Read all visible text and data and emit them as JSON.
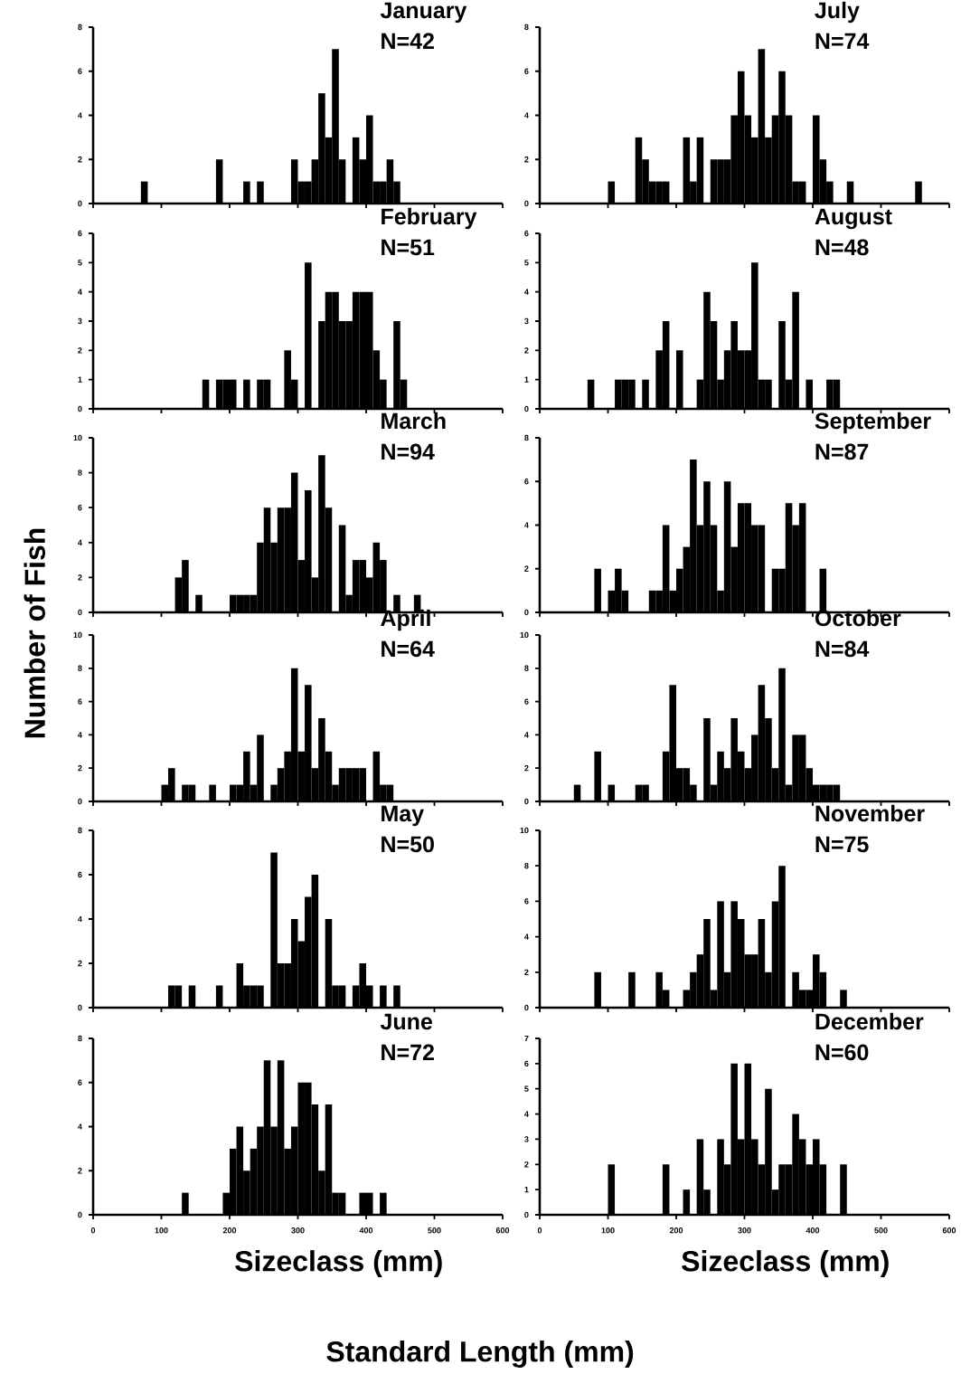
{
  "chart_data": [
    {
      "type": "histogram",
      "title": "January",
      "subtitle": "N=42",
      "color": "#000000",
      "xlim": [
        0,
        600
      ],
      "xticks": [
        0,
        100,
        200,
        300,
        400,
        500,
        600
      ],
      "ylim": [
        0,
        8
      ],
      "yticks": [
        0,
        2,
        4,
        6,
        8
      ],
      "tick_labels": "y",
      "bins": [
        70,
        80,
        90,
        100,
        110,
        120,
        130,
        140,
        150,
        160,
        170,
        180,
        190,
        200,
        210,
        220,
        230,
        240,
        250,
        260,
        270,
        280,
        290,
        300,
        310,
        320,
        330,
        340,
        350,
        360,
        370,
        380,
        390,
        400,
        410,
        420,
        430,
        440,
        450
      ],
      "values": [
        1,
        0,
        0,
        0,
        0,
        0,
        0,
        0,
        0,
        0,
        0,
        2,
        0,
        0,
        0,
        1,
        0,
        1,
        0,
        0,
        0,
        0,
        2,
        1,
        1,
        2,
        5,
        3,
        7,
        2,
        0,
        3,
        2,
        4,
        1,
        1,
        2,
        1
      ]
    },
    {
      "type": "histogram",
      "title": "July",
      "subtitle": "N=74",
      "color": "#000000",
      "xlim": [
        0,
        600
      ],
      "xticks": [
        0,
        100,
        200,
        300,
        400,
        500,
        600
      ],
      "ylim": [
        0,
        8
      ],
      "yticks": [
        0,
        2,
        4,
        6,
        8
      ],
      "tick_labels": "y",
      "bins": [
        100,
        110,
        120,
        130,
        140,
        150,
        160,
        170,
        180,
        190,
        200,
        210,
        220,
        230,
        240,
        250,
        260,
        270,
        280,
        290,
        300,
        310,
        320,
        330,
        340,
        350,
        360,
        370,
        380,
        390,
        400,
        410,
        420,
        430,
        440,
        450,
        460,
        470,
        480,
        490,
        500,
        510,
        520,
        530,
        540,
        550,
        560
      ],
      "values": [
        1,
        0,
        0,
        0,
        3,
        2,
        1,
        1,
        1,
        0,
        0,
        3,
        1,
        3,
        0,
        2,
        2,
        2,
        4,
        6,
        4,
        3,
        7,
        3,
        4,
        6,
        4,
        1,
        1,
        0,
        4,
        2,
        1,
        0,
        0,
        1,
        0,
        0,
        0,
        0,
        0,
        0,
        0,
        0,
        0,
        1
      ]
    },
    {
      "type": "histogram",
      "title": "February",
      "subtitle": "N=51",
      "color": "#000000",
      "xlim": [
        0,
        600
      ],
      "xticks": [
        0,
        100,
        200,
        300,
        400,
        500,
        600
      ],
      "ylim": [
        0,
        6
      ],
      "yticks": [
        0,
        1,
        2,
        3,
        4,
        5,
        6
      ],
      "tick_labels": "y",
      "bins": [
        160,
        170,
        180,
        190,
        200,
        210,
        220,
        230,
        240,
        250,
        260,
        270,
        280,
        290,
        300,
        310,
        320,
        330,
        340,
        350,
        360,
        370,
        380,
        390,
        400,
        410,
        420,
        430,
        440,
        450,
        460
      ],
      "values": [
        1,
        0,
        1,
        1,
        1,
        0,
        1,
        0,
        1,
        1,
        0,
        0,
        2,
        1,
        0,
        5,
        0,
        3,
        4,
        4,
        3,
        3,
        4,
        4,
        4,
        2,
        1,
        0,
        3,
        1
      ]
    },
    {
      "type": "histogram",
      "title": "August",
      "subtitle": "N=48",
      "color": "#000000",
      "xlim": [
        0,
        600
      ],
      "xticks": [
        0,
        100,
        200,
        300,
        400,
        500,
        600
      ],
      "ylim": [
        0,
        6
      ],
      "yticks": [
        0,
        1,
        2,
        3,
        4,
        5,
        6
      ],
      "tick_labels": "y",
      "bins": [
        70,
        80,
        90,
        100,
        110,
        120,
        130,
        140,
        150,
        160,
        170,
        180,
        190,
        200,
        210,
        220,
        230,
        240,
        250,
        260,
        270,
        280,
        290,
        300,
        310,
        320,
        330,
        340,
        350,
        360,
        370,
        380,
        390,
        400,
        410,
        420,
        430,
        440
      ],
      "values": [
        1,
        0,
        0,
        0,
        1,
        1,
        1,
        0,
        1,
        0,
        2,
        3,
        0,
        2,
        0,
        0,
        1,
        4,
        3,
        1,
        2,
        3,
        2,
        2,
        5,
        1,
        1,
        0,
        3,
        1,
        4,
        0,
        1,
        0,
        0,
        1,
        1
      ]
    },
    {
      "type": "histogram",
      "title": "March",
      "subtitle": "N=94",
      "ylabel": "Number of Fish",
      "color": "#000000",
      "xlim": [
        0,
        600
      ],
      "xticks": [
        0,
        100,
        200,
        300,
        400,
        500,
        600
      ],
      "ylim": [
        0,
        10
      ],
      "yticks": [
        0,
        2,
        4,
        6,
        8,
        10
      ],
      "tick_labels": "y",
      "bins": [
        120,
        130,
        140,
        150,
        160,
        170,
        180,
        190,
        200,
        210,
        220,
        230,
        240,
        250,
        260,
        270,
        280,
        290,
        300,
        310,
        320,
        330,
        340,
        350,
        360,
        370,
        380,
        390,
        400,
        410,
        420,
        430,
        440,
        450,
        460,
        470,
        480
      ],
      "values": [
        2,
        3,
        0,
        1,
        0,
        0,
        0,
        0,
        1,
        1,
        1,
        1,
        4,
        6,
        4,
        6,
        6,
        8,
        3,
        7,
        2,
        9,
        6,
        0,
        5,
        1,
        3,
        3,
        2,
        4,
        3,
        0,
        1,
        0,
        0,
        1
      ]
    },
    {
      "type": "histogram",
      "title": "September",
      "subtitle": "N=87",
      "color": "#000000",
      "xlim": [
        0,
        600
      ],
      "xticks": [
        0,
        100,
        200,
        300,
        400,
        500,
        600
      ],
      "ylim": [
        0,
        8
      ],
      "yticks": [
        0,
        2,
        4,
        6,
        8
      ],
      "tick_labels": "y",
      "bins": [
        80,
        90,
        100,
        110,
        120,
        130,
        140,
        150,
        160,
        170,
        180,
        190,
        200,
        210,
        220,
        230,
        240,
        250,
        260,
        270,
        280,
        290,
        300,
        310,
        320,
        330,
        340,
        350,
        360,
        370,
        380,
        390,
        400,
        410,
        420
      ],
      "values": [
        2,
        0,
        1,
        2,
        1,
        0,
        0,
        0,
        1,
        1,
        4,
        1,
        2,
        3,
        7,
        4,
        6,
        4,
        1,
        6,
        3,
        5,
        5,
        4,
        4,
        0,
        2,
        2,
        5,
        4,
        5,
        0,
        0,
        2
      ]
    },
    {
      "type": "histogram",
      "title": "April",
      "subtitle": "N=64",
      "color": "#000000",
      "xlim": [
        0,
        600
      ],
      "xticks": [
        0,
        100,
        200,
        300,
        400,
        500,
        600
      ],
      "ylim": [
        0,
        10
      ],
      "yticks": [
        0,
        2,
        4,
        6,
        8,
        10
      ],
      "tick_labels": "y",
      "bins": [
        100,
        110,
        120,
        130,
        140,
        150,
        160,
        170,
        180,
        190,
        200,
        210,
        220,
        230,
        240,
        250,
        260,
        270,
        280,
        290,
        300,
        310,
        320,
        330,
        340,
        350,
        360,
        370,
        380,
        390,
        400,
        410,
        420,
        430,
        440
      ],
      "values": [
        1,
        2,
        0,
        1,
        1,
        0,
        0,
        1,
        0,
        0,
        1,
        1,
        3,
        1,
        4,
        0,
        1,
        2,
        3,
        8,
        3,
        7,
        2,
        5,
        3,
        1,
        2,
        2,
        2,
        2,
        0,
        3,
        1,
        1
      ]
    },
    {
      "type": "histogram",
      "title": "October",
      "subtitle": "N=84",
      "color": "#000000",
      "xlim": [
        0,
        600
      ],
      "xticks": [
        0,
        100,
        200,
        300,
        400,
        500,
        600
      ],
      "ylim": [
        0,
        10
      ],
      "yticks": [
        0,
        2,
        4,
        6,
        8,
        10
      ],
      "tick_labels": "y",
      "bins": [
        50,
        60,
        70,
        80,
        90,
        100,
        110,
        120,
        130,
        140,
        150,
        160,
        170,
        180,
        190,
        200,
        210,
        220,
        230,
        240,
        250,
        260,
        270,
        280,
        290,
        300,
        310,
        320,
        330,
        340,
        350,
        360,
        370,
        380,
        390,
        400,
        410,
        420,
        430,
        440
      ],
      "values": [
        1,
        0,
        0,
        3,
        0,
        1,
        0,
        0,
        0,
        1,
        1,
        0,
        0,
        3,
        7,
        2,
        2,
        1,
        0,
        5,
        1,
        3,
        2,
        5,
        3,
        2,
        4,
        7,
        5,
        2,
        8,
        1,
        4,
        4,
        2,
        1,
        1,
        1,
        1
      ]
    },
    {
      "type": "histogram",
      "title": "May",
      "subtitle": "N=50",
      "color": "#000000",
      "xlim": [
        0,
        600
      ],
      "xticks": [
        0,
        100,
        200,
        300,
        400,
        500,
        600
      ],
      "ylim": [
        0,
        8
      ],
      "yticks": [
        0,
        2,
        4,
        6,
        8
      ],
      "tick_labels": "y",
      "bins": [
        110,
        120,
        130,
        140,
        150,
        160,
        170,
        180,
        190,
        200,
        210,
        220,
        230,
        240,
        250,
        260,
        270,
        280,
        290,
        300,
        310,
        320,
        330,
        340,
        350,
        360,
        370,
        380,
        390,
        400,
        410,
        420,
        430,
        440,
        450
      ],
      "values": [
        1,
        1,
        0,
        1,
        0,
        0,
        0,
        1,
        0,
        0,
        2,
        1,
        1,
        1,
        0,
        7,
        2,
        2,
        4,
        3,
        5,
        6,
        0,
        4,
        1,
        1,
        0,
        1,
        2,
        1,
        0,
        1,
        0,
        1
      ]
    },
    {
      "type": "histogram",
      "title": "November",
      "subtitle": "N=75",
      "color": "#000000",
      "xlim": [
        0,
        600
      ],
      "xticks": [
        0,
        100,
        200,
        300,
        400,
        500,
        600
      ],
      "ylim": [
        0,
        10
      ],
      "yticks": [
        0,
        2,
        4,
        6,
        8,
        10
      ],
      "tick_labels": "y",
      "bins": [
        80,
        90,
        100,
        110,
        120,
        130,
        140,
        150,
        160,
        170,
        180,
        190,
        200,
        210,
        220,
        230,
        240,
        250,
        260,
        270,
        280,
        290,
        300,
        310,
        320,
        330,
        340,
        350,
        360,
        370,
        380,
        390,
        400,
        410,
        420,
        430,
        440,
        450
      ],
      "values": [
        2,
        0,
        0,
        0,
        0,
        2,
        0,
        0,
        0,
        2,
        1,
        0,
        0,
        1,
        2,
        3,
        5,
        1,
        6,
        2,
        6,
        5,
        3,
        3,
        5,
        2,
        6,
        8,
        0,
        2,
        1,
        1,
        3,
        2,
        0,
        0,
        1
      ]
    },
    {
      "type": "histogram",
      "title": "June",
      "subtitle": "N=72",
      "xlabel": "Sizeclass (mm)",
      "annotations": [
        "Standard Length (mm)"
      ],
      "color": "#000000",
      "xlim": [
        0,
        600
      ],
      "xticks": [
        0,
        100,
        200,
        300,
        400,
        500,
        600
      ],
      "ylim": [
        0,
        8
      ],
      "yticks": [
        0,
        2,
        4,
        6,
        8
      ],
      "bins": [
        130,
        140,
        150,
        160,
        170,
        180,
        190,
        200,
        210,
        220,
        230,
        240,
        250,
        260,
        270,
        280,
        290,
        300,
        310,
        320,
        330,
        340,
        350,
        360,
        370,
        380,
        390,
        400,
        410,
        420,
        430
      ],
      "values": [
        1,
        0,
        0,
        0,
        0,
        0,
        1,
        3,
        4,
        2,
        3,
        4,
        7,
        4,
        7,
        3,
        4,
        6,
        6,
        5,
        2,
        5,
        1,
        1,
        0,
        0,
        1,
        1,
        0,
        1
      ]
    },
    {
      "type": "histogram",
      "title": "December",
      "subtitle": "N=60",
      "xlabel": "Sizeclass (mm)",
      "color": "#000000",
      "xlim": [
        0,
        600
      ],
      "xticks": [
        0,
        100,
        200,
        300,
        400,
        500,
        600
      ],
      "ylim": [
        0,
        7
      ],
      "yticks": [
        0,
        1,
        2,
        3,
        4,
        5,
        6,
        7
      ],
      "bins": [
        100,
        110,
        120,
        130,
        140,
        150,
        160,
        170,
        180,
        190,
        200,
        210,
        220,
        230,
        240,
        250,
        260,
        270,
        280,
        290,
        300,
        310,
        320,
        330,
        340,
        350,
        360,
        370,
        380,
        390,
        400,
        410,
        420,
        430,
        440,
        450
      ],
      "values": [
        2,
        0,
        0,
        0,
        0,
        0,
        0,
        0,
        2,
        0,
        0,
        1,
        0,
        3,
        1,
        0,
        3,
        2,
        6,
        3,
        6,
        3,
        2,
        5,
        1,
        2,
        2,
        4,
        3,
        2,
        3,
        2,
        0,
        0,
        2
      ]
    }
  ]
}
